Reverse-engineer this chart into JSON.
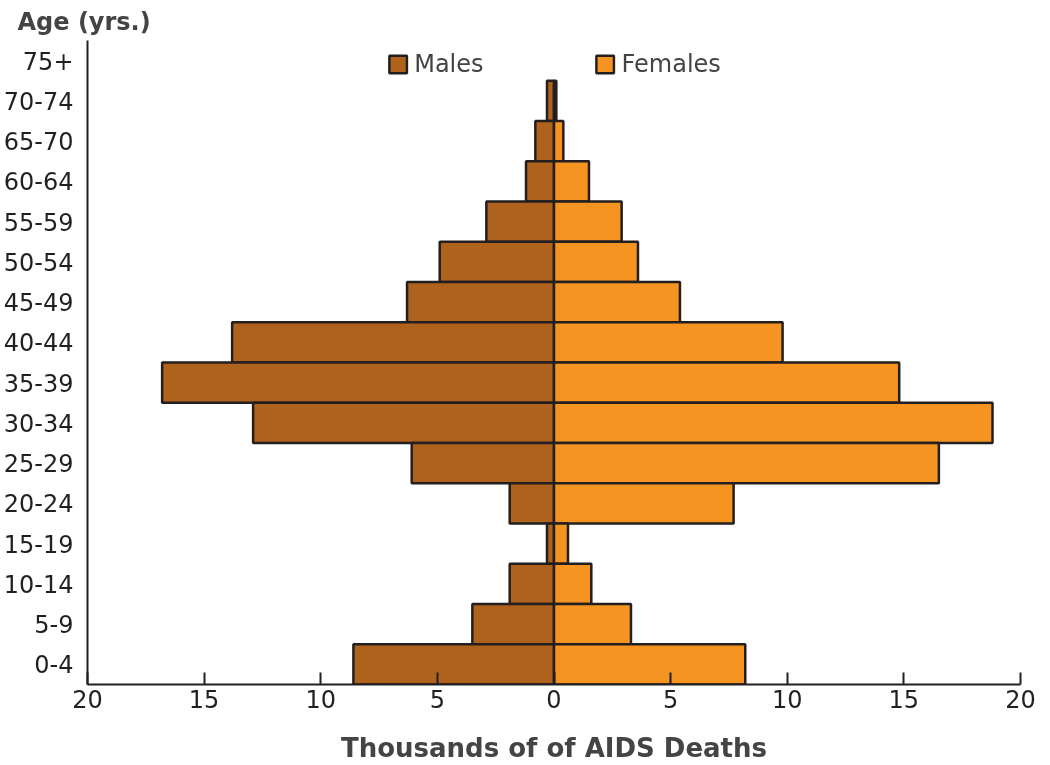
{
  "chart_data": {
    "type": "bar",
    "orientation": "horizontal",
    "ylabel": "Age (yrs.)",
    "xlabel": "Thousands of of AIDS Deaths",
    "categories": [
      "75+",
      "70-74",
      "65-70",
      "60-64",
      "55-59",
      "50-54",
      "45-49",
      "40-44",
      "35-39",
      "30-34",
      "25-29",
      "20-24",
      "15-19",
      "10-14",
      "5-9",
      "0-4"
    ],
    "series": [
      {
        "name": "Males",
        "color": "#ae621b",
        "values": [
          null,
          -0.3,
          -0.8,
          -1.2,
          -2.9,
          -4.9,
          -6.3,
          -13.8,
          -16.8,
          -12.9,
          -6.1,
          -1.9,
          -0.3,
          -1.9,
          -3.5,
          -8.6
        ]
      },
      {
        "name": "Females",
        "color": "#f59420",
        "values": [
          null,
          0.1,
          0.4,
          1.5,
          2.9,
          3.6,
          5.4,
          9.8,
          14.8,
          18.8,
          16.5,
          7.7,
          0.6,
          1.6,
          3.3,
          8.2
        ]
      }
    ],
    "xlim": [
      -20,
      20
    ],
    "xticks": [
      {
        "value": -20,
        "label": "20"
      },
      {
        "value": -15,
        "label": "15"
      },
      {
        "value": -10,
        "label": "10"
      },
      {
        "value": -5,
        "label": "5"
      },
      0,
      5,
      10,
      15,
      20
    ],
    "legend": "top",
    "grid": false,
    "stacked": true
  }
}
